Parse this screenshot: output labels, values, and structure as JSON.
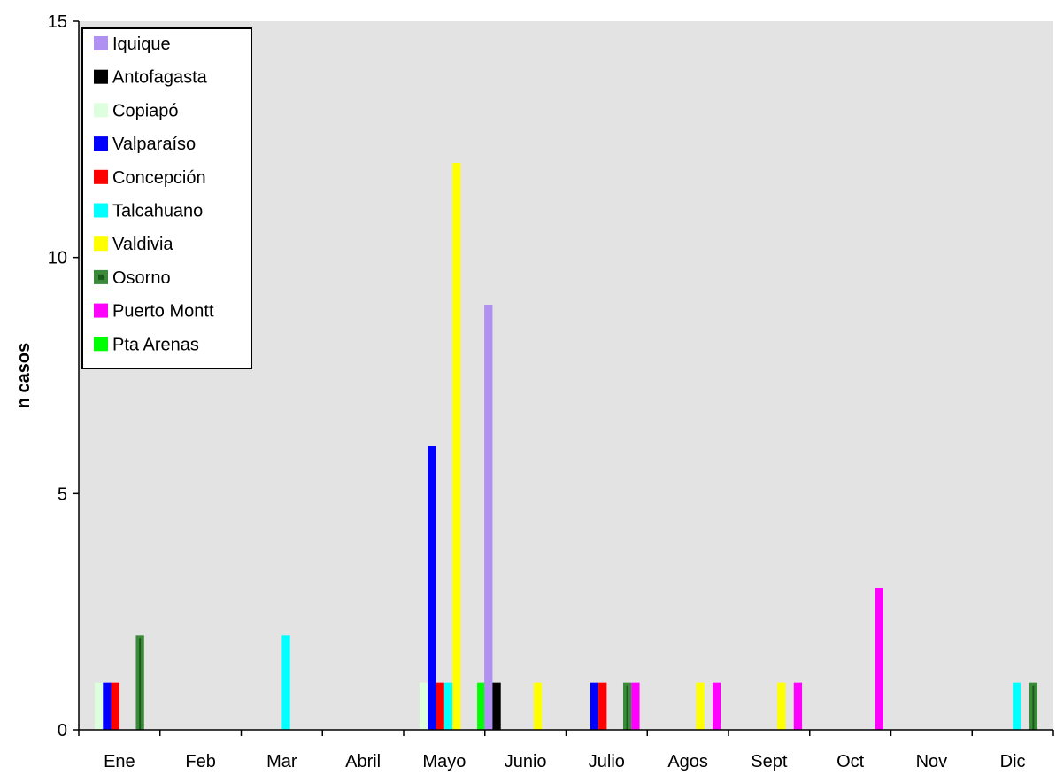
{
  "chart_data": {
    "type": "bar",
    "title": "",
    "xlabel": "",
    "ylabel": "n casos",
    "ylim": [
      0,
      15
    ],
    "yticks": [
      0,
      5,
      10,
      15
    ],
    "grid": false,
    "legend_position": "top-left",
    "plot_background": "#e3e3e3",
    "categories": [
      "Ene",
      "Feb",
      "Mar",
      "Abril",
      "Mayo",
      "Junio",
      "Julio",
      "Agos",
      "Sept",
      "Oct",
      "Nov",
      "Dic"
    ],
    "series": [
      {
        "name": "Iquique",
        "color": "#b090f0",
        "values": [
          0,
          0,
          0,
          0,
          0,
          9,
          0,
          0,
          0,
          0,
          0,
          0
        ]
      },
      {
        "name": "Antofagasta",
        "color": "#000000",
        "values": [
          0,
          0,
          0,
          0,
          0,
          1,
          0,
          0,
          0,
          0,
          0,
          0
        ]
      },
      {
        "name": "Copiapó",
        "color": "#ddffdd",
        "values": [
          1,
          0,
          0,
          0,
          1,
          0,
          0,
          0,
          0,
          0,
          0,
          0
        ]
      },
      {
        "name": "Valparaíso",
        "color": "#0000ff",
        "values": [
          1,
          0,
          0,
          0,
          6,
          0,
          1,
          0,
          0,
          0,
          0,
          0
        ]
      },
      {
        "name": "Concepción",
        "color": "#ff0000",
        "values": [
          1,
          0,
          0,
          0,
          1,
          0,
          1,
          0,
          0,
          0,
          0,
          0
        ]
      },
      {
        "name": "Talcahuano",
        "color": "#00ffff",
        "values": [
          0,
          0,
          2,
          0,
          1,
          0,
          0,
          0,
          0,
          0,
          0,
          1
        ]
      },
      {
        "name": "Valdivia",
        "color": "#ffff00",
        "values": [
          0,
          0,
          0,
          0,
          12,
          1,
          0,
          1,
          1,
          0,
          0,
          0
        ]
      },
      {
        "name": "Osorno",
        "color": "#3a8a3a",
        "values": [
          2,
          0,
          0,
          0,
          0,
          0,
          1,
          0,
          0,
          0,
          0,
          1
        ]
      },
      {
        "name": "Puerto Montt",
        "color": "#ff00ff",
        "values": [
          0,
          0,
          0,
          0,
          0,
          0,
          1,
          1,
          1,
          3,
          0,
          0
        ]
      },
      {
        "name": "Pta Arenas",
        "color": "#00ff00",
        "values": [
          0,
          0,
          0,
          0,
          1,
          0,
          0,
          0,
          0,
          0,
          0,
          0
        ]
      }
    ]
  }
}
